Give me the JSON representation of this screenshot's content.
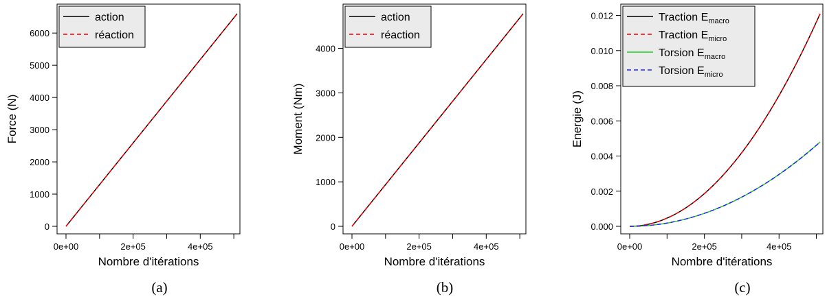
{
  "chart_data": [
    {
      "type": "line",
      "caption": "(a)",
      "xlabel": "Nombre d'itérations",
      "ylabel": "Force (N)",
      "xlim": [
        0,
        510000
      ],
      "ylim": [
        0,
        6600
      ],
      "x_ticks": [
        "0e+00",
        "2e+05",
        "4e+05"
      ],
      "y_ticks": [
        "0",
        "1000",
        "2000",
        "3000",
        "4000",
        "5000",
        "6000"
      ],
      "grid": false,
      "legend_position": "top-left",
      "legend": [
        {
          "name": "action",
          "sub": "",
          "color": "#000000",
          "dash": "solid"
        },
        {
          "name": "réaction",
          "sub": "",
          "color": "#ff0000",
          "dash": "dashed"
        }
      ],
      "series": [
        {
          "name": "action",
          "color": "#000000",
          "dash": "solid",
          "x": [
            0,
            510000
          ],
          "y": [
            0,
            6600
          ]
        },
        {
          "name": "réaction",
          "color": "#ff0000",
          "dash": "dashed",
          "x": [
            0,
            510000
          ],
          "y": [
            0,
            6600
          ]
        }
      ]
    },
    {
      "type": "line",
      "caption": "(b)",
      "xlabel": "Nombre d'itérations",
      "ylabel": "Moment (Nm)",
      "xlim": [
        0,
        510000
      ],
      "ylim": [
        0,
        4780
      ],
      "x_ticks": [
        "0e+00",
        "2e+05",
        "4e+05"
      ],
      "y_ticks": [
        "0",
        "1000",
        "2000",
        "3000",
        "4000"
      ],
      "grid": false,
      "legend_position": "top-left",
      "legend": [
        {
          "name": "action",
          "sub": "",
          "color": "#000000",
          "dash": "solid"
        },
        {
          "name": "réaction",
          "sub": "",
          "color": "#ff0000",
          "dash": "dashed"
        }
      ],
      "series": [
        {
          "name": "action",
          "color": "#000000",
          "dash": "solid",
          "x": [
            0,
            510000
          ],
          "y": [
            0,
            4780
          ]
        },
        {
          "name": "réaction",
          "color": "#ff0000",
          "dash": "dashed",
          "x": [
            0,
            510000
          ],
          "y": [
            0,
            4780
          ]
        }
      ]
    },
    {
      "type": "line",
      "caption": "(c)",
      "xlabel": "Nombre d'itérations",
      "ylabel": "Energie (J)",
      "xlim": [
        0,
        510000
      ],
      "ylim": [
        0,
        0.0121
      ],
      "x_ticks": [
        "0e+00",
        "2e+05",
        "4e+05"
      ],
      "y_ticks": [
        "0.000",
        "0.002",
        "0.004",
        "0.006",
        "0.008",
        "0.010",
        "0.012"
      ],
      "grid": false,
      "legend_position": "top-left",
      "legend": [
        {
          "name": "Traction E",
          "sub": "macro",
          "color": "#000000",
          "dash": "solid"
        },
        {
          "name": "Traction E",
          "sub": "micro",
          "color": "#ff0000",
          "dash": "dashed"
        },
        {
          "name": "Torsion E",
          "sub": "macro",
          "color": "#22cc22",
          "dash": "solid"
        },
        {
          "name": "Torsion E",
          "sub": "micro",
          "color": "#2222ff",
          "dash": "dashed"
        }
      ],
      "series": [
        {
          "name": "Traction Emacro",
          "color": "#000000",
          "dash": "solid",
          "x": [
            0,
            50000,
            100000,
            150000,
            200000,
            250000,
            300000,
            350000,
            400000,
            450000,
            510000
          ],
          "y": [
            0,
            0.000116,
            0.000465,
            0.001047,
            0.001861,
            0.002907,
            0.004187,
            0.005698,
            0.007443,
            0.00942,
            0.0121
          ]
        },
        {
          "name": "Traction Emicro",
          "color": "#ff0000",
          "dash": "dashed",
          "x": [
            0,
            50000,
            100000,
            150000,
            200000,
            250000,
            300000,
            350000,
            400000,
            450000,
            510000
          ],
          "y": [
            0,
            0.000116,
            0.000465,
            0.001047,
            0.001861,
            0.002907,
            0.004187,
            0.005698,
            0.007443,
            0.00942,
            0.0121
          ]
        },
        {
          "name": "Torsion Emacro",
          "color": "#22cc22",
          "dash": "solid",
          "x": [
            0,
            50000,
            100000,
            150000,
            200000,
            250000,
            300000,
            350000,
            400000,
            450000,
            510000
          ],
          "y": [
            0,
            4.6e-05,
            0.000185,
            0.000415,
            0.000738,
            0.001153,
            0.001661,
            0.00226,
            0.002952,
            0.003737,
            0.0048
          ]
        },
        {
          "name": "Torsion Emicro",
          "color": "#2222ff",
          "dash": "dashed",
          "x": [
            0,
            50000,
            100000,
            150000,
            200000,
            250000,
            300000,
            350000,
            400000,
            450000,
            510000
          ],
          "y": [
            0,
            4.6e-05,
            0.000185,
            0.000415,
            0.000738,
            0.001153,
            0.001661,
            0.00226,
            0.002952,
            0.003737,
            0.0048
          ]
        }
      ]
    }
  ]
}
